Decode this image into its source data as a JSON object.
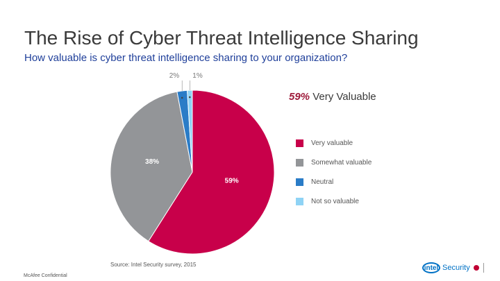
{
  "title": "The Rise of Cyber Threat Intelligence Sharing",
  "subtitle": "How valuable is cyber threat intelligence sharing to your organization?",
  "callout": {
    "percent": "59%",
    "text": "Very Valuable"
  },
  "source": "Source: Intel Security survey, 2015",
  "footer": "McAfee Confidential",
  "logo": {
    "brand": "intel",
    "word": "Security"
  },
  "chart_data": {
    "type": "pie",
    "slices": [
      {
        "label": "Very valuable",
        "value": 59,
        "display": "59%",
        "color": "#c8004a"
      },
      {
        "label": "Somewhat valuable",
        "value": 38,
        "display": "38%",
        "color": "#939598"
      },
      {
        "label": "Neutral",
        "value": 2,
        "display": "2%",
        "color": "#2a7cc7"
      },
      {
        "label": "Not so valuable",
        "value": 1,
        "display": "1%",
        "color": "#8fd3f5"
      }
    ],
    "legend_position": "right"
  }
}
